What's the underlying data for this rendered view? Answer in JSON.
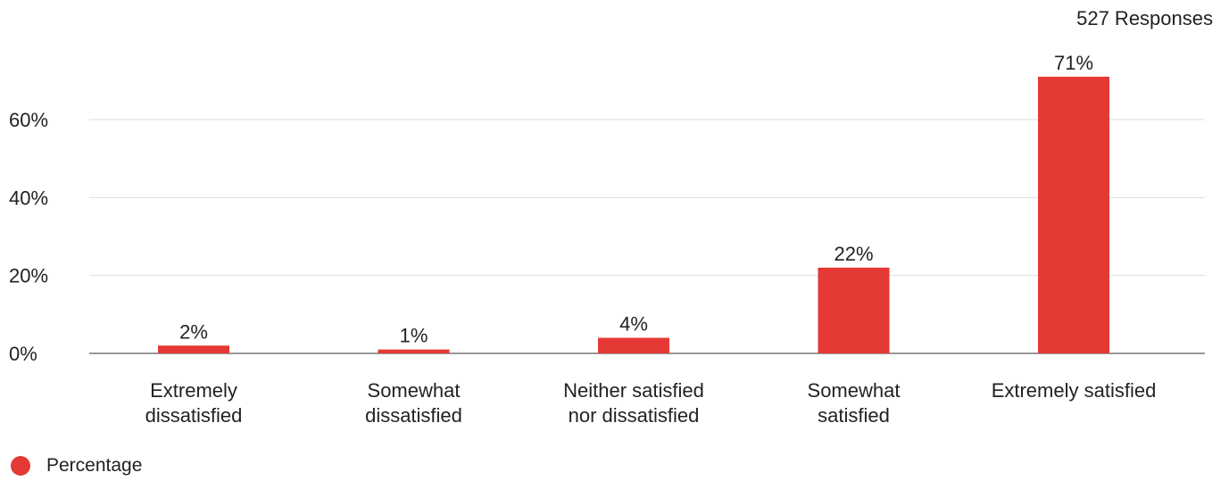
{
  "responses_label": "527 Responses",
  "legend": {
    "label": "Percentage",
    "color": "#e53935"
  },
  "chart_data": {
    "type": "bar",
    "categories": [
      [
        "Extremely",
        "dissatisfied"
      ],
      [
        "Somewhat",
        "dissatisfied"
      ],
      [
        "Neither satisfied",
        "nor dissatisfied"
      ],
      [
        "Somewhat",
        "satisfied"
      ],
      [
        "Extremely satisfied"
      ]
    ],
    "series": [
      {
        "name": "Percentage",
        "values": [
          2,
          1,
          4,
          22,
          71
        ],
        "data_labels": [
          "2%",
          "1%",
          "4%",
          "22%",
          "71%"
        ],
        "color": "#e53935"
      }
    ],
    "yticks": [
      0,
      20,
      40,
      60
    ],
    "ytick_labels": [
      "0%",
      "20%",
      "40%",
      "60%"
    ],
    "ylim": [
      0,
      71
    ],
    "grid": true,
    "legend_position": "bottom-left"
  }
}
